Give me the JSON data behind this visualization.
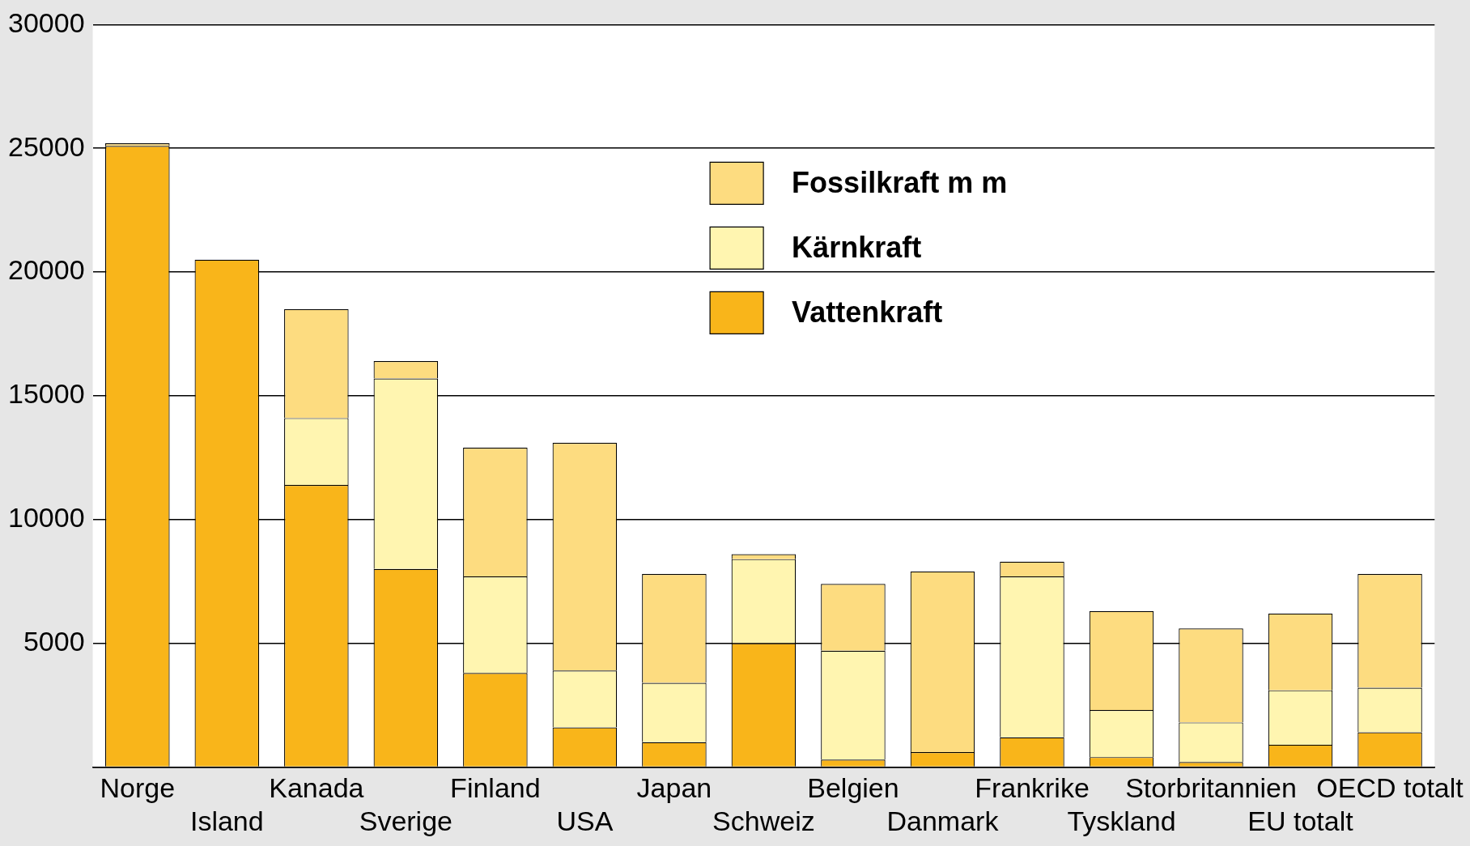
{
  "chart_data": {
    "type": "bar",
    "stacked": true,
    "categories": [
      "Norge",
      "Island",
      "Kanada",
      "Sverige",
      "Finland",
      "USA",
      "Japan",
      "Schweiz",
      "Belgien",
      "Danmark",
      "Frankrike",
      "Tyskland",
      "Storbritannien",
      "EU totalt",
      "OECD totalt"
    ],
    "series": [
      {
        "name": "Vattenkraft",
        "color": "#f9b51a",
        "values": [
          25100,
          20500,
          11400,
          8000,
          3800,
          1600,
          1000,
          5000,
          300,
          600,
          1200,
          400,
          200,
          900,
          1400
        ]
      },
      {
        "name": "Kärnkraft",
        "color": "#fff5b0",
        "values": [
          null,
          null,
          2700,
          7700,
          3900,
          2300,
          2400,
          3400,
          4400,
          null,
          6500,
          1900,
          1600,
          2200,
          1800
        ]
      },
      {
        "name": "Fossilkraft m m",
        "color": "#fddc80",
        "values": [
          100,
          null,
          4400,
          700,
          5200,
          9200,
          4400,
          200,
          2700,
          7300,
          600,
          4000,
          3800,
          3100,
          4600
        ]
      }
    ],
    "ylim": [
      0,
      30000
    ],
    "yticks": [
      {
        "value": 0,
        "label": null
      },
      5000,
      10000,
      15000,
      20000,
      25000,
      30000
    ],
    "grid": "y",
    "legend": "top"
  }
}
